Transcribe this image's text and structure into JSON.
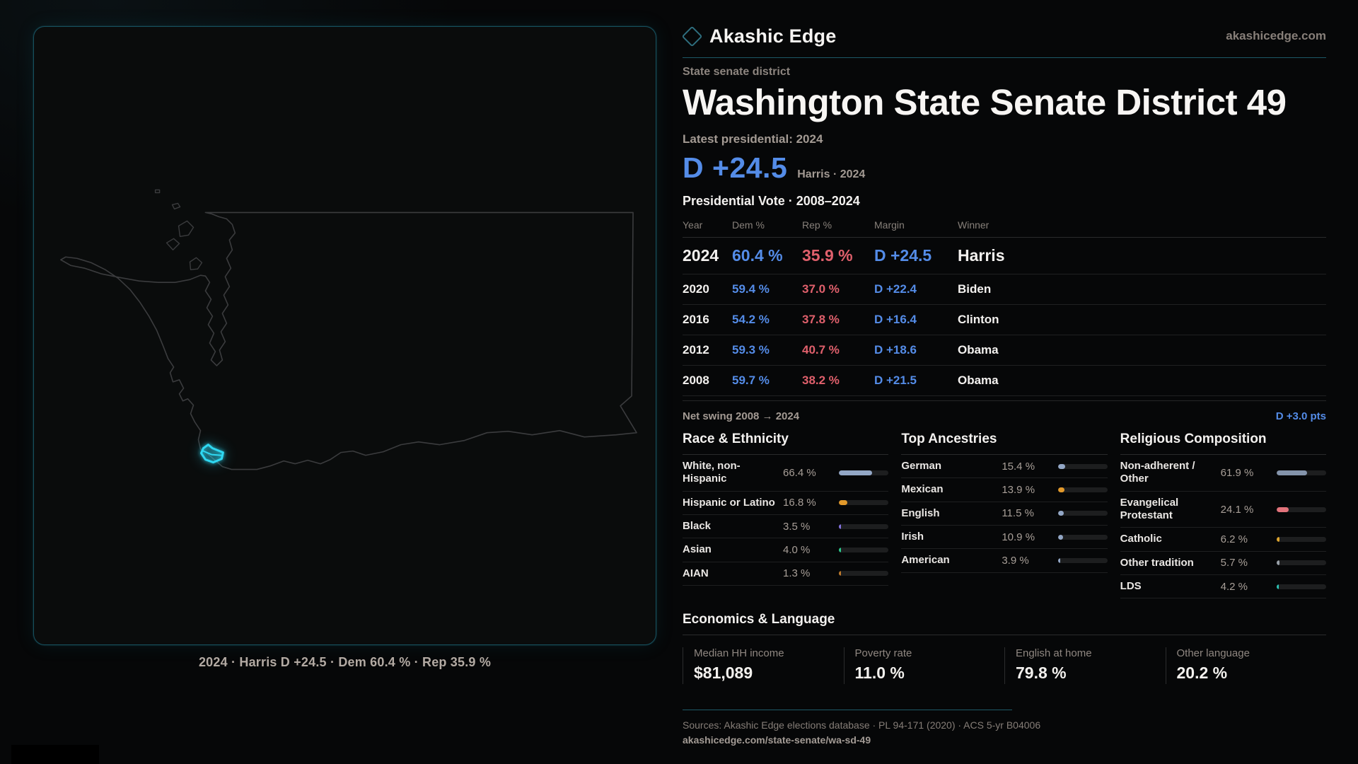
{
  "brand": {
    "name": "Akashic Edge",
    "domain": "akashicedge.com"
  },
  "map": {
    "caption": "2024 · Harris D +24.5 · Dem 60.4 % · Rep 35.9 %",
    "district_color": "#2fd8f2",
    "outline_color": "#3b3c3e"
  },
  "header": {
    "kicker": "State senate district",
    "title": "Washington State Senate District 49",
    "latest_label": "Latest presidential: 2024",
    "margin_value": "D +24.5",
    "margin_caption": "Harris · 2024"
  },
  "table": {
    "title": "Presidential Vote · 2008–2024",
    "columns": [
      "Year",
      "Dem %",
      "Rep %",
      "Margin",
      "Winner"
    ],
    "rows": [
      {
        "year": "2024",
        "dem": "60.4 %",
        "rep": "35.9 %",
        "margin": "D +24.5",
        "winner": "Harris",
        "big": true
      },
      {
        "year": "2020",
        "dem": "59.4 %",
        "rep": "37.0 %",
        "margin": "D +22.4",
        "winner": "Biden",
        "big": false
      },
      {
        "year": "2016",
        "dem": "54.2 %",
        "rep": "37.8 %",
        "margin": "D +16.4",
        "winner": "Clinton",
        "big": false
      },
      {
        "year": "2012",
        "dem": "59.3 %",
        "rep": "40.7 %",
        "margin": "D +18.6",
        "winner": "Obama",
        "big": false
      },
      {
        "year": "2008",
        "dem": "59.7 %",
        "rep": "38.2 %",
        "margin": "D +21.5",
        "winner": "Obama",
        "big": false
      }
    ],
    "net_swing_label": "Net swing 2008 → 2024",
    "net_swing_value": "D +3.0 pts"
  },
  "demographics": [
    {
      "title": "Race & Ethnicity",
      "rows": [
        {
          "label": "White, non-Hispanic",
          "value": "66.4 %",
          "pct": 66.4,
          "color": "#93a7c6"
        },
        {
          "label": "Hispanic or Latino",
          "value": "16.8 %",
          "pct": 16.8,
          "color": "#e2992b"
        },
        {
          "label": "Black",
          "value": "3.5 %",
          "pct": 3.5,
          "color": "#8572e0"
        },
        {
          "label": "Asian",
          "value": "4.0 %",
          "pct": 4.0,
          "color": "#2cc98c"
        },
        {
          "label": "AIAN",
          "value": "1.3 %",
          "pct": 1.3,
          "color": "#bf7a2c"
        }
      ]
    },
    {
      "title": "Top Ancestries",
      "rows": [
        {
          "label": "German",
          "value": "15.4 %",
          "pct": 15.4,
          "color": "#93a7c6"
        },
        {
          "label": "Mexican",
          "value": "13.9 %",
          "pct": 13.9,
          "color": "#e2992b"
        },
        {
          "label": "English",
          "value": "11.5 %",
          "pct": 11.5,
          "color": "#93a7c6"
        },
        {
          "label": "Irish",
          "value": "10.9 %",
          "pct": 10.9,
          "color": "#93a7c6"
        },
        {
          "label": "American",
          "value": "3.9 %",
          "pct": 3.9,
          "color": "#93a7c6"
        }
      ]
    },
    {
      "title": "Religious Composition",
      "rows": [
        {
          "label": "Non-adherent / Other",
          "value": "61.9 %",
          "pct": 61.9,
          "color": "#8494ab"
        },
        {
          "label": "Evangelical Protestant",
          "value": "24.1 %",
          "pct": 24.1,
          "color": "#e2737b"
        },
        {
          "label": "Catholic",
          "value": "6.2 %",
          "pct": 6.2,
          "color": "#dda42e"
        },
        {
          "label": "Other tradition",
          "value": "5.7 %",
          "pct": 5.7,
          "color": "#98a0a8"
        },
        {
          "label": "LDS",
          "value": "4.2 %",
          "pct": 4.2,
          "color": "#2cc2b4"
        }
      ]
    }
  ],
  "economics": {
    "title": "Economics & Language",
    "stats": [
      {
        "label": "Median HH income",
        "value": "$81,089"
      },
      {
        "label": "Poverty rate",
        "value": "11.0 %"
      },
      {
        "label": "English at home",
        "value": "79.8 %"
      },
      {
        "label": "Other language",
        "value": "20.2 %"
      }
    ]
  },
  "footer": {
    "sources": "Sources: Akashic Edge elections database · PL 94-171 (2020) · ACS 5-yr B04006",
    "permalink": "akashicedge.com/state-senate/wa-sd-49"
  },
  "colors": {
    "dem_blue": "#548ce8",
    "rep_red": "#e0606c",
    "accent_teal": "#1d5a68",
    "district_cyan": "#2fd8f2"
  }
}
